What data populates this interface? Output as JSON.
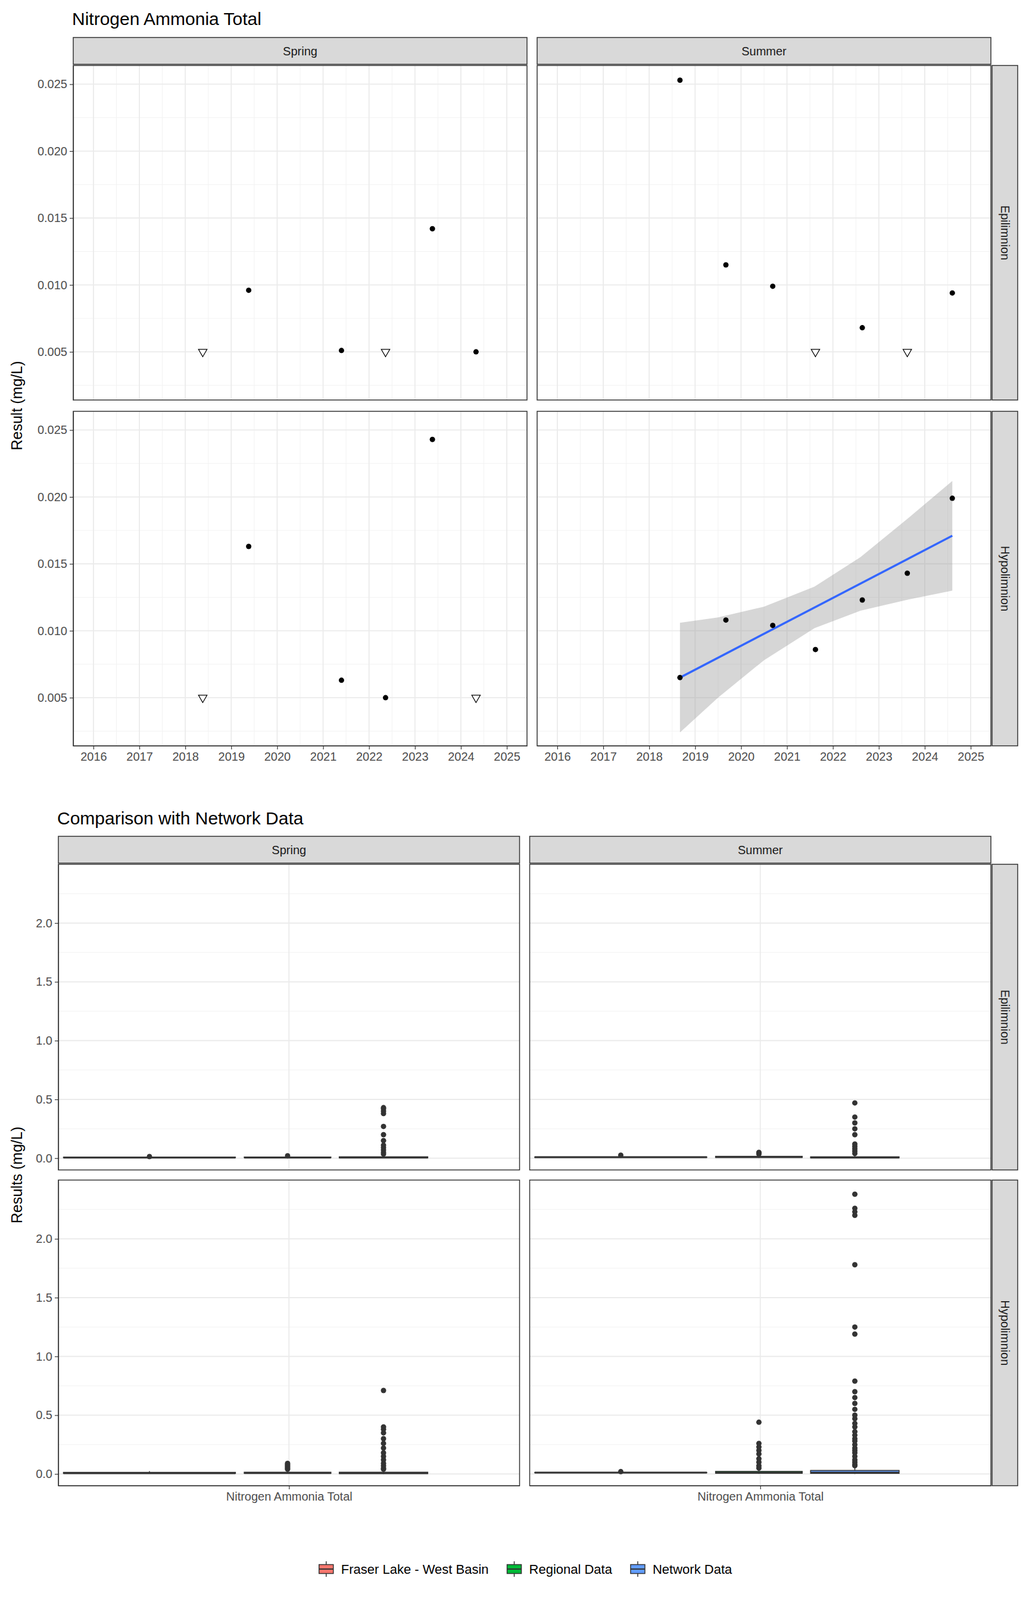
{
  "chart_data": [
    {
      "type": "scatter",
      "title": "Nitrogen Ammonia Total",
      "y_label": "Result (mg/L)",
      "grid": true,
      "columns": [
        "Spring",
        "Summer"
      ],
      "rows": [
        "Epilimnion",
        "Hypolimnion"
      ],
      "xlim": [
        2015.56,
        2025.44
      ],
      "xticks": [
        2016,
        2017,
        2018,
        2019,
        2020,
        2021,
        2022,
        2023,
        2024,
        2025
      ],
      "ylim": [
        0.0014,
        0.0264
      ],
      "yticks": [
        0.005,
        {
          "value": 0.01,
          "label": "0.010"
        },
        0.015,
        {
          "value": 0.02,
          "label": "0.020"
        },
        0.025
      ],
      "panels": [
        [
          {
            "series": [
              {
                "marker": "circle",
                "color": "#000000",
                "x": [
                  2019.38,
                  2021.4,
                  2023.38,
                  2024.33
                ],
                "values": [
                  0.0096,
                  0.0051,
                  0.0142,
                  0.005
                ]
              },
              {
                "marker": "open-triangle-down",
                "color": "#000000",
                "x": [
                  2018.38,
                  2022.36
                ],
                "values": [
                  0.005,
                  0.005
                ]
              }
            ]
          },
          {
            "series": [
              {
                "marker": "circle",
                "color": "#000000",
                "x": [
                  2018.67,
                  2019.67,
                  2020.69,
                  2022.64,
                  2024.6
                ],
                "values": [
                  0.0253,
                  0.0115,
                  0.0099,
                  0.0068,
                  0.0094
                ]
              },
              {
                "marker": "open-triangle-down",
                "color": "#000000",
                "x": [
                  2021.62,
                  2023.62
                ],
                "values": [
                  0.005,
                  0.005
                ]
              }
            ]
          }
        ],
        [
          {
            "series": [
              {
                "marker": "circle",
                "color": "#000000",
                "x": [
                  2019.38,
                  2021.4,
                  2022.36,
                  2023.38
                ],
                "values": [
                  0.0163,
                  0.0063,
                  0.005,
                  0.0243
                ]
              },
              {
                "marker": "open-triangle-down",
                "color": "#000000",
                "x": [
                  2018.38,
                  2024.33
                ],
                "values": [
                  0.005,
                  0.005
                ]
              }
            ]
          },
          {
            "series": [
              {
                "type": "area",
                "color": "#999999",
                "x": [
                  2018.67,
                  2019.5,
                  2020.5,
                  2021.6,
                  2022.6,
                  2023.6,
                  2024.6
                ],
                "lower": [
                  0.0024,
                  0.005,
                  0.0078,
                  0.0102,
                  0.0115,
                  0.0123,
                  0.013
                ],
                "upper": [
                  0.0106,
                  0.011,
                  0.0118,
                  0.0133,
                  0.0155,
                  0.0183,
                  0.0212
                ]
              },
              {
                "type": "line",
                "color": "#3366FF",
                "x": [
                  2018.67,
                  2024.6
                ],
                "values": [
                  0.0065,
                  0.0171
                ]
              },
              {
                "marker": "circle",
                "color": "#000000",
                "x": [
                  2018.67,
                  2019.67,
                  2020.69,
                  2021.62,
                  2022.64,
                  2023.62,
                  2024.6
                ],
                "values": [
                  0.0065,
                  0.0108,
                  0.0104,
                  0.0086,
                  0.0123,
                  0.0143,
                  0.0199
                ]
              }
            ]
          }
        ]
      ]
    },
    {
      "type": "box",
      "title": "Comparison with Network Data",
      "y_label": "Results (mg/L)",
      "grid": true,
      "legend": "bottom",
      "columns": [
        "Spring",
        "Summer"
      ],
      "rows": [
        "Epilimnion",
        "Hypolimnion"
      ],
      "categories": [
        "Nitrogen Ammonia Total"
      ],
      "ylim": [
        -0.1,
        2.5
      ],
      "yticks": [
        {
          "value": 0,
          "label": "0.0"
        },
        0.5,
        {
          "value": 1,
          "label": "1.0"
        },
        1.5,
        {
          "value": 2,
          "label": "2.0"
        }
      ],
      "series": [
        {
          "name": "Fraser Lake - West Basin",
          "color": "#F8766D"
        },
        {
          "name": "Regional Data",
          "color": "#00BA38"
        },
        {
          "name": "Network Data",
          "color": "#619CFF"
        }
      ],
      "panels": [
        [
          [
            {
              "min": 0.005,
              "q1": 0.005,
              "median": 0.005,
              "q3": 0.0085,
              "max": 0.0096,
              "outliers": [
                0.0142
              ]
            },
            {
              "min": 0.001,
              "q1": 0.005,
              "median": 0.005,
              "q3": 0.01,
              "max": 0.017,
              "outliers": [
                0.02
              ]
            },
            {
              "min": 0,
              "q1": 0.0025,
              "median": 0.005,
              "q3": 0.012,
              "max": 0.025,
              "outliers": [
                0.035,
                0.05,
                0.07,
                0.09,
                0.11,
                0.15,
                0.2,
                0.27,
                0.38,
                0.4,
                0.42,
                0.43
              ]
            }
          ],
          [
            {
              "min": 0.005,
              "q1": 0.0059,
              "median": 0.0094,
              "q3": 0.0107,
              "max": 0.0115,
              "outliers": [
                0.0253
              ]
            },
            {
              "min": 0.002,
              "q1": 0.006,
              "median": 0.01,
              "q3": 0.016,
              "max": 0.03,
              "outliers": [
                0.035,
                0.045,
                0.05
              ]
            },
            {
              "min": 0,
              "q1": 0.0025,
              "median": 0.005,
              "q3": 0.012,
              "max": 0.025,
              "outliers": [
                0.04,
                0.06,
                0.08,
                0.1,
                0.12,
                0.2,
                0.25,
                0.3,
                0.35,
                0.47
              ]
            }
          ]
        ],
        [
          [
            {
              "min": 0.005,
              "q1": 0.005,
              "median": 0.0057,
              "q3": 0.0138,
              "max": 0.0243,
              "outliers": []
            },
            {
              "min": 0.001,
              "q1": 0.005,
              "median": 0.008,
              "q3": 0.015,
              "max": 0.03,
              "outliers": [
                0.04,
                0.05,
                0.06,
                0.07,
                0.08,
                0.09
              ]
            },
            {
              "min": 0,
              "q1": 0.003,
              "median": 0.007,
              "q3": 0.015,
              "max": 0.033,
              "outliers": [
                0.04,
                0.05,
                0.07,
                0.09,
                0.12,
                0.15,
                0.18,
                0.22,
                0.26,
                0.3,
                0.35,
                0.38,
                0.4,
                0.71
              ]
            }
          ],
          [
            {
              "min": 0.0065,
              "q1": 0.0095,
              "median": 0.0108,
              "q3": 0.0133,
              "max": 0.0143,
              "outliers": [
                0.0199
              ]
            },
            {
              "min": 0.001,
              "q1": 0.006,
              "median": 0.012,
              "q3": 0.022,
              "max": 0.045,
              "outliers": [
                0.05,
                0.07,
                0.1,
                0.13,
                0.17,
                0.2,
                0.23,
                0.26,
                0.44
              ]
            },
            {
              "min": 0,
              "q1": 0.005,
              "median": 0.012,
              "q3": 0.03,
              "max": 0.066,
              "outliers": [
                0.07,
                0.08,
                0.1,
                0.12,
                0.15,
                0.18,
                0.2,
                0.22,
                0.25,
                0.28,
                0.3,
                0.33,
                0.36,
                0.4,
                0.43,
                0.47,
                0.5,
                0.55,
                0.6,
                0.65,
                0.7,
                0.79,
                1.19,
                1.25,
                1.78,
                2.2,
                2.23,
                2.26,
                2.38
              ]
            }
          ]
        ]
      ]
    }
  ]
}
